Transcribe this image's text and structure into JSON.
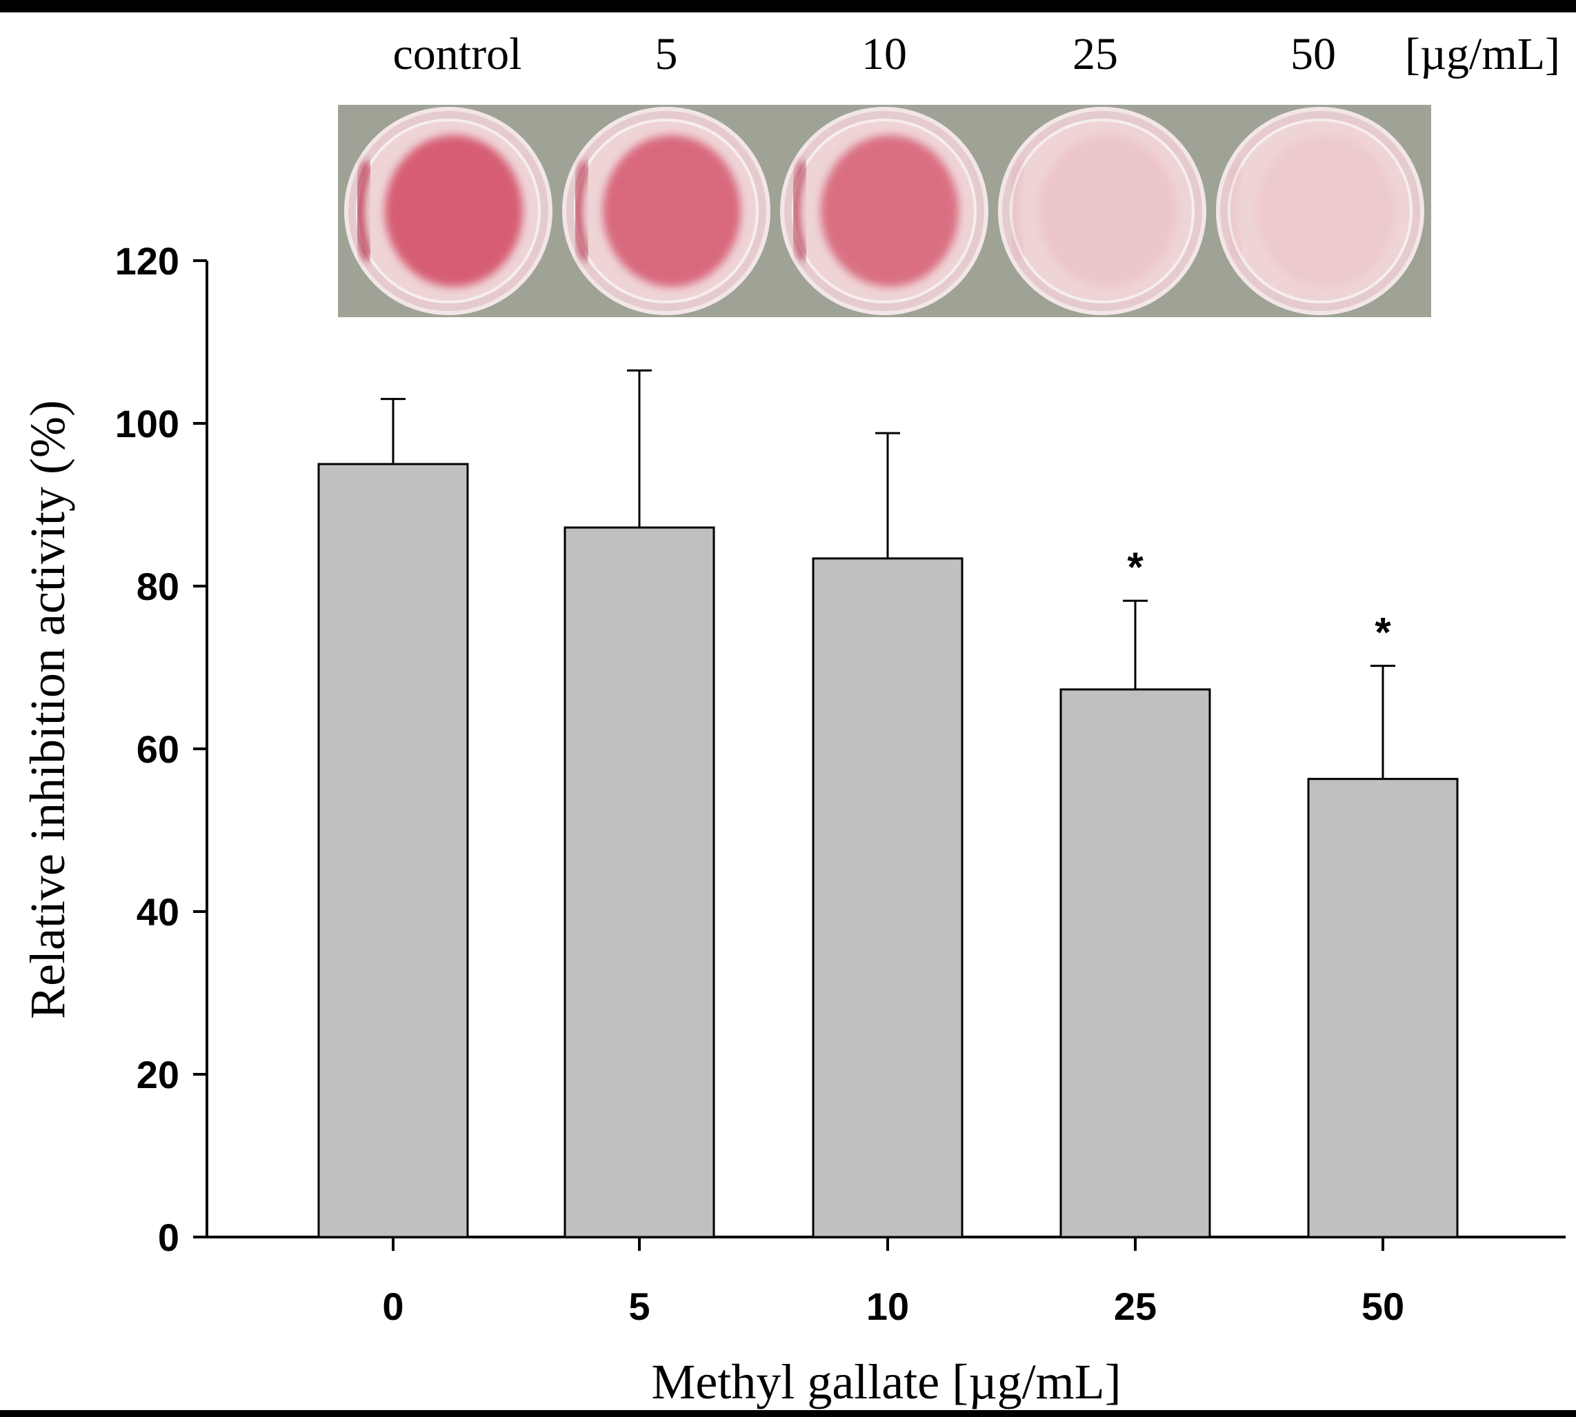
{
  "chart_data": {
    "type": "bar",
    "xlabel": "Methyl gallate [µg/mL]",
    "ylabel": "Relative inhibition activity (%)",
    "categories": [
      "0",
      "5",
      "10",
      "25",
      "50"
    ],
    "values": [
      95,
      87.2,
      83.4,
      67.3,
      56.3
    ],
    "error_upper": [
      103,
      106.5,
      98.8,
      78.2,
      70.2
    ],
    "significance": [
      "",
      "",
      "",
      "*",
      "*"
    ],
    "ylim": [
      0,
      120
    ],
    "yticks": [
      "0",
      "20",
      "40",
      "60",
      "80",
      "100",
      "120"
    ],
    "grid": false,
    "bar_color": "#c0c0c0",
    "photo": {
      "labels": [
        "control",
        "5",
        "10",
        "25",
        "50"
      ],
      "unit": "[µg/mL]",
      "stain_intensity": [
        1.0,
        0.9,
        0.85,
        0.12,
        0.08
      ],
      "background_color": "#9ea396",
      "stain_color": "#d24a64"
    }
  }
}
